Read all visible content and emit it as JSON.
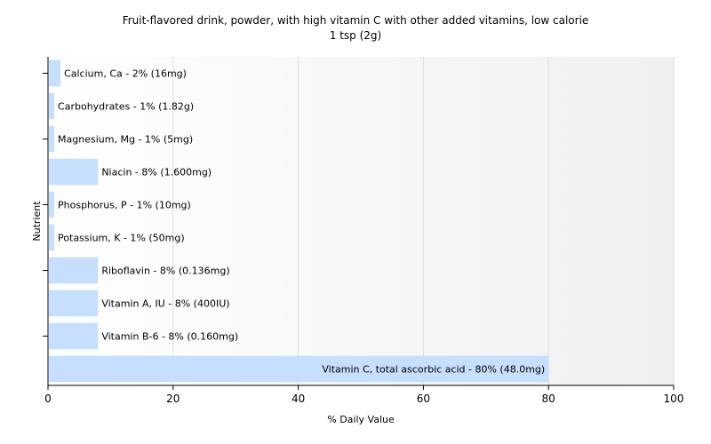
{
  "chart_data": {
    "type": "bar",
    "orientation": "horizontal",
    "title": "Fruit-flavored drink, powder, with high vitamin C with other added vitamins, low calorie",
    "subtitle": "1 tsp (2g)",
    "xlabel": "% Daily Value",
    "ylabel": "Nutrient",
    "xlim": [
      0,
      100
    ],
    "xticks": [
      0,
      20,
      40,
      60,
      80,
      100
    ],
    "grid": true,
    "bar_color": "#c6dffc",
    "categories": [
      "Calcium, Ca",
      "Carbohydrates",
      "Magnesium, Mg",
      "Niacin",
      "Phosphorus, P",
      "Potassium, K",
      "Riboflavin",
      "Vitamin A, IU",
      "Vitamin B-6",
      "Vitamin C, total ascorbic acid"
    ],
    "values": [
      2,
      1,
      1,
      8,
      1,
      1,
      8,
      8,
      8,
      80
    ],
    "bar_labels": [
      "Calcium, Ca - 2% (16mg)",
      "Carbohydrates - 1% (1.82g)",
      "Magnesium, Mg - 1% (5mg)",
      "Niacin - 8% (1.600mg)",
      "Phosphorus, P - 1% (10mg)",
      "Potassium, K - 1% (50mg)",
      "Riboflavin - 8% (0.136mg)",
      "Vitamin A, IU - 8% (400IU)",
      "Vitamin B-6 - 8% (0.160mg)",
      "Vitamin C, total ascorbic acid - 80% (48.0mg)"
    ]
  }
}
